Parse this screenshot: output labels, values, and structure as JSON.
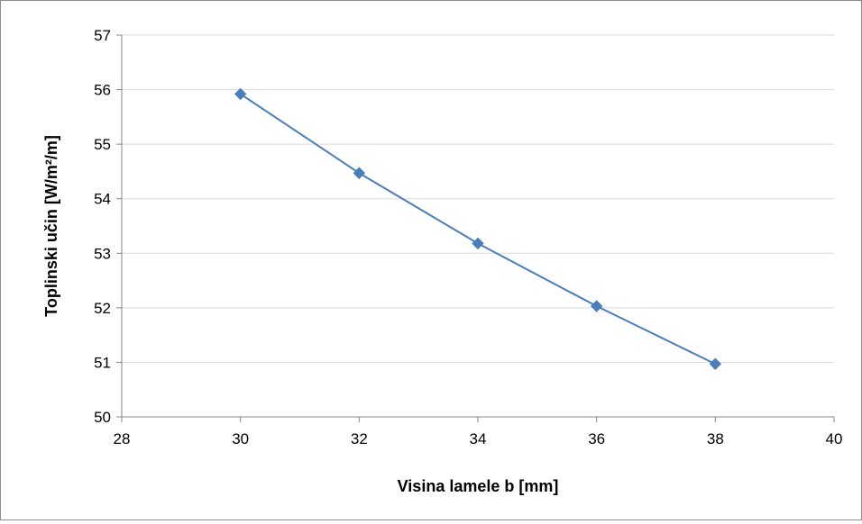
{
  "chart_data": {
    "type": "line",
    "xlabel": "Visina lamele  b  [mm]",
    "ylabel": "Toplinski učin  [W/m²/m]",
    "xlim": [
      28,
      40
    ],
    "ylim": [
      50,
      57
    ],
    "xticks": [
      28,
      30,
      32,
      34,
      36,
      38,
      40
    ],
    "yticks": [
      50,
      51,
      52,
      53,
      54,
      55,
      56,
      57
    ],
    "grid": "horizontal",
    "legend": "none",
    "series": [
      {
        "x": [
          30,
          32,
          34,
          36,
          38
        ],
        "y": [
          55.92,
          54.47,
          53.18,
          52.03,
          50.97
        ],
        "color": "#4a7ebb",
        "marker": "diamond"
      }
    ]
  },
  "colors": {
    "gridline": "#d9d9d9",
    "axis": "#868686",
    "series": "#4a7ebb"
  }
}
